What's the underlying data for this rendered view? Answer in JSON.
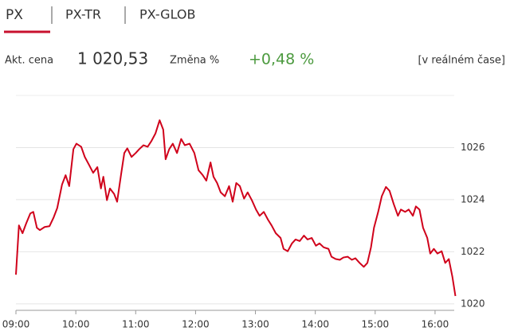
{
  "tabs": [
    "PX",
    "PX-TR",
    "PX-GLOB"
  ],
  "quote": {
    "price_label": "Akt. cena",
    "price": "1 020,53",
    "change_label": "Změna %",
    "change": "+0,48 %",
    "mode": "[v reálném čase]"
  },
  "chart_data": {
    "type": "line",
    "x": [
      9.0,
      9.05,
      9.11,
      9.17,
      9.24,
      9.29,
      9.35,
      9.4,
      9.48,
      9.56,
      9.63,
      9.69,
      9.77,
      9.83,
      9.89,
      9.96,
      10.01,
      10.09,
      10.15,
      10.22,
      10.29,
      10.36,
      10.42,
      10.46,
      10.52,
      10.57,
      10.64,
      10.69,
      10.76,
      10.81,
      10.86,
      10.93,
      11.0,
      11.06,
      11.13,
      11.2,
      11.26,
      11.33,
      11.4,
      11.46,
      11.5,
      11.56,
      11.62,
      11.69,
      11.76,
      11.82,
      11.9,
      11.98,
      12.05,
      12.12,
      12.18,
      12.25,
      12.3,
      12.36,
      12.42,
      12.49,
      12.56,
      12.62,
      12.68,
      12.74,
      12.81,
      12.87,
      12.94,
      13.01,
      13.07,
      13.14,
      13.21,
      13.27,
      13.34,
      13.42,
      13.47,
      13.54,
      13.61,
      13.67,
      13.74,
      13.81,
      13.87,
      13.94,
      14.01,
      14.07,
      14.14,
      14.22,
      14.27,
      14.34,
      14.41,
      14.47,
      14.54,
      14.61,
      14.67,
      14.74,
      14.81,
      14.87,
      14.93,
      14.98,
      15.05,
      15.11,
      15.18,
      15.24,
      15.31,
      15.38,
      15.43,
      15.5,
      15.56,
      15.63,
      15.68,
      15.74,
      15.8,
      15.87,
      15.92,
      15.98,
      16.04,
      16.11,
      16.17,
      16.23,
      16.29,
      16.34
    ],
    "series": [
      {
        "color": "#d0021b",
        "values": [
          1021.12,
          1023.01,
          1022.71,
          1023.08,
          1023.47,
          1023.53,
          1022.92,
          1022.83,
          1022.95,
          1022.98,
          1023.32,
          1023.68,
          1024.58,
          1024.94,
          1024.52,
          1025.94,
          1026.15,
          1026.03,
          1025.64,
          1025.34,
          1025.03,
          1025.25,
          1024.43,
          1024.88,
          1023.98,
          1024.43,
          1024.22,
          1023.92,
          1025.03,
          1025.79,
          1025.97,
          1025.64,
          1025.79,
          1025.94,
          1026.09,
          1026.03,
          1026.24,
          1026.54,
          1027.05,
          1026.69,
          1025.55,
          1025.94,
          1026.15,
          1025.79,
          1026.33,
          1026.09,
          1026.15,
          1025.79,
          1025.13,
          1024.94,
          1024.73,
          1025.43,
          1024.88,
          1024.64,
          1024.28,
          1024.13,
          1024.52,
          1023.92,
          1024.64,
          1024.52,
          1024.04,
          1024.28,
          1023.98,
          1023.62,
          1023.38,
          1023.53,
          1023.23,
          1023.01,
          1022.71,
          1022.53,
          1022.11,
          1022.02,
          1022.32,
          1022.47,
          1022.41,
          1022.62,
          1022.47,
          1022.53,
          1022.23,
          1022.32,
          1022.17,
          1022.11,
          1021.81,
          1021.72,
          1021.69,
          1021.78,
          1021.81,
          1021.69,
          1021.75,
          1021.57,
          1021.42,
          1021.57,
          1022.17,
          1022.92,
          1023.53,
          1024.13,
          1024.49,
          1024.34,
          1023.83,
          1023.38,
          1023.62,
          1023.53,
          1023.62,
          1023.38,
          1023.74,
          1023.62,
          1022.92,
          1022.53,
          1021.93,
          1022.11,
          1021.93,
          1022.02,
          1021.57,
          1021.72,
          1021.03,
          1020.3
        ]
      }
    ],
    "xlim": [
      9,
      16.4
    ],
    "xticks": [
      {
        "value": 9,
        "label": "09:00"
      },
      {
        "value": 10,
        "label": "10:00"
      },
      {
        "value": 11,
        "label": "11:00"
      },
      {
        "value": 12,
        "label": "12:00"
      },
      {
        "value": 13,
        "label": "13:00"
      },
      {
        "value": 14,
        "label": "14:00"
      },
      {
        "value": 15,
        "label": "15:00"
      },
      {
        "value": 16,
        "label": "16:00"
      }
    ],
    "ylim": [
      1019.75,
      1028
    ],
    "yticks": [
      1020,
      1022,
      1024,
      1026
    ],
    "grid": true
  }
}
